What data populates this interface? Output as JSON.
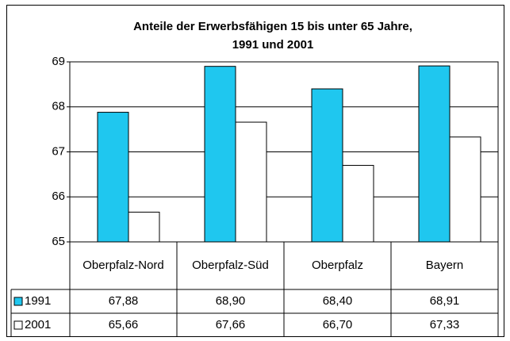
{
  "chart_data": {
    "type": "bar",
    "title": "Anteile der Erwerbsfähigen 15 bis unter 65 Jahre,",
    "subtitle": "1991 und 2001",
    "categories": [
      "Oberpfalz-Nord",
      "Oberpfalz-Süd",
      "Oberpfalz",
      "Bayern"
    ],
    "series": [
      {
        "name": "1991",
        "color": "#1fc7ef",
        "values": [
          67.88,
          68.9,
          68.4,
          68.91
        ],
        "value_labels": [
          "67,88",
          "68,90",
          "68,40",
          "68,91"
        ]
      },
      {
        "name": "2001",
        "color": "#ffffff",
        "values": [
          65.66,
          67.66,
          66.7,
          67.33
        ],
        "value_labels": [
          "65,66",
          "67,66",
          "66,70",
          "67,33"
        ]
      }
    ],
    "ylim": [
      65,
      69
    ],
    "yticks": [
      65,
      66,
      67,
      68,
      69
    ],
    "grid": true
  }
}
